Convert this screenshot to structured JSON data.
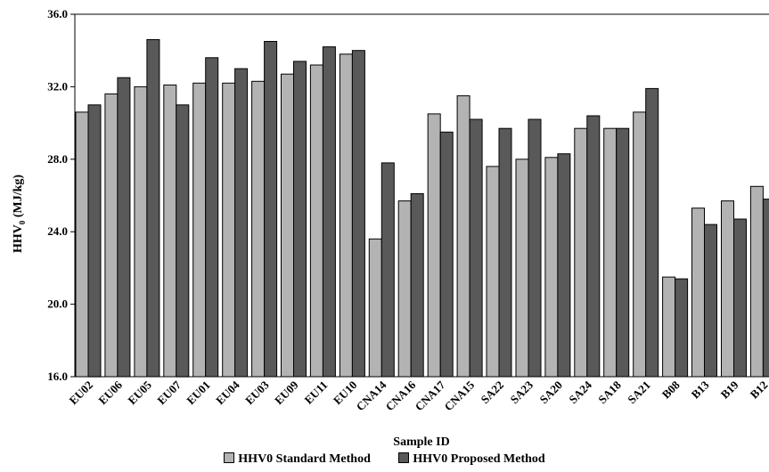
{
  "chart_data": {
    "type": "bar",
    "title": "",
    "xlabel": "Sample ID",
    "ylabel_main": "HHV",
    "ylabel_sub": "0",
    "ylabel_unit": " (MJ/kg)",
    "ylim": [
      16.0,
      36.0
    ],
    "yticks": [
      "16.0",
      "20.0",
      "24.0",
      "28.0",
      "32.0",
      "36.0"
    ],
    "grid": false,
    "legend_position": "bottom",
    "categories": [
      "EU02",
      "EU06",
      "EU05",
      "EU07",
      "EU01",
      "EU04",
      "EU03",
      "EU09",
      "EU11",
      "EU10",
      "CNA14",
      "CNA16",
      "CNA17",
      "CNA15",
      "SA22",
      "SA23",
      "SA20",
      "SA24",
      "SA18",
      "SA21",
      "B08",
      "B13",
      "B19",
      "B12"
    ],
    "series": [
      {
        "name": "HHV0 Standard Method",
        "color": "#b3b3b3",
        "values": [
          30.6,
          31.6,
          32.0,
          32.1,
          32.2,
          32.2,
          32.3,
          32.7,
          33.2,
          33.8,
          23.6,
          25.7,
          30.5,
          31.5,
          27.6,
          28.0,
          28.1,
          29.7,
          29.7,
          30.6,
          21.5,
          25.3,
          25.7,
          26.5
        ]
      },
      {
        "name": "HHV0 Proposed Method",
        "color": "#595959",
        "values": [
          31.0,
          32.5,
          34.6,
          31.0,
          33.6,
          33.0,
          34.5,
          33.4,
          34.2,
          34.0,
          27.8,
          26.1,
          29.5,
          30.2,
          29.7,
          30.2,
          28.3,
          30.4,
          29.7,
          31.9,
          21.4,
          24.4,
          24.7,
          25.8
        ]
      }
    ]
  }
}
